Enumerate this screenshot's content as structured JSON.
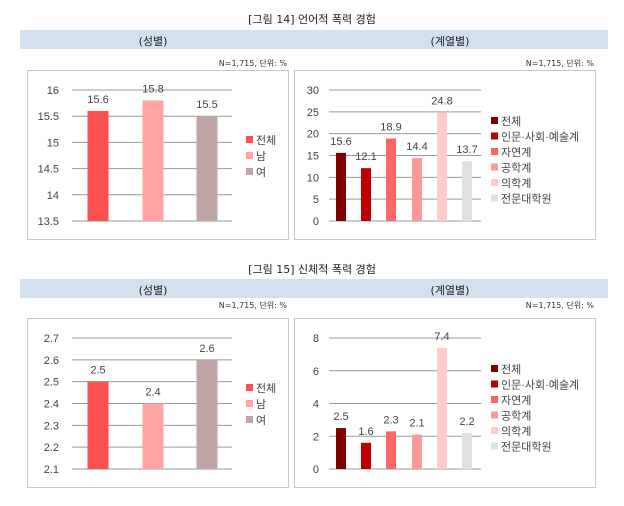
{
  "figures": [
    {
      "title": "[그림 14] 언어적 폭력 경험",
      "left_header": "(성별)",
      "right_header": "(계열별)",
      "left_note": "N=1,715, 단위: %",
      "right_note": "N=1,715, 단위: %"
    },
    {
      "title": "[그림 15] 신체적 폭력 경험",
      "left_header": "(성별)",
      "right_header": "(계열별)",
      "left_note": "N=1,715, 단위: %",
      "right_note": "N=1,715, 단위: %"
    }
  ],
  "chart_data": [
    {
      "type": "bar",
      "title": "언어적 폭력 경험 (성별)",
      "categories": [
        "전체",
        "남",
        "여"
      ],
      "values": [
        15.6,
        15.8,
        15.5
      ],
      "colors": [
        "#ff5050",
        "#ffa3a3",
        "#bfa5a5"
      ],
      "yticks": [
        "13.5",
        "14",
        "14.5",
        "15",
        "15.5",
        "16"
      ],
      "ylim": [
        13.5,
        16
      ],
      "legend": "right"
    },
    {
      "type": "bar",
      "title": "언어적 폭력 경험 (계열별)",
      "categories": [
        "전체",
        "인문·사회·예술계",
        "자연계",
        "공학계",
        "의학계",
        "전문대학원"
      ],
      "values": [
        15.6,
        12.1,
        18.9,
        14.4,
        24.8,
        13.7
      ],
      "colors": [
        "#800000",
        "#c00000",
        "#ff6666",
        "#ff9999",
        "#ffcccc",
        "#e0e0e0"
      ],
      "yticks": [
        "0",
        "5",
        "10",
        "15",
        "20",
        "25",
        "30"
      ],
      "ylim": [
        0,
        30
      ],
      "legend": "right"
    },
    {
      "type": "bar",
      "title": "신체적 폭력 경험 (성별)",
      "categories": [
        "전체",
        "남",
        "여"
      ],
      "values": [
        2.5,
        2.4,
        2.6
      ],
      "colors": [
        "#ff5050",
        "#ffa3a3",
        "#bfa5a5"
      ],
      "yticks": [
        "2.1",
        "2.2",
        "2.3",
        "2.4",
        "2.5",
        "2.6",
        "2.7"
      ],
      "ylim": [
        2.1,
        2.7
      ],
      "legend": "right"
    },
    {
      "type": "bar",
      "title": "신체적 폭력 경험 (계열별)",
      "categories": [
        "전체",
        "인문·사회·예술계",
        "자연계",
        "공학계",
        "의학계",
        "전문대학원"
      ],
      "values": [
        2.5,
        1.6,
        2.3,
        2.1,
        7.4,
        2.2
      ],
      "colors": [
        "#800000",
        "#c00000",
        "#ff6666",
        "#ff9999",
        "#ffcccc",
        "#e0e0e0"
      ],
      "yticks": [
        "0",
        "2",
        "4",
        "6",
        "8"
      ],
      "ylim": [
        0,
        8
      ],
      "legend": "right"
    }
  ]
}
